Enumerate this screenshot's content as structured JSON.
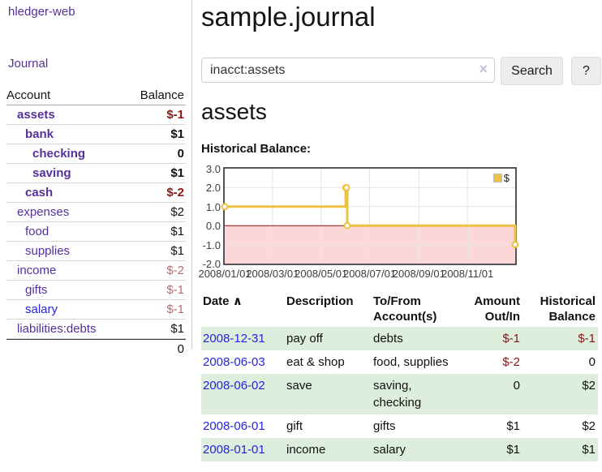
{
  "app": {
    "brand": "hledger-web",
    "nav_journal": "Journal"
  },
  "sidebar": {
    "col_account": "Account",
    "col_balance": "Balance",
    "accounts": [
      {
        "name": "assets",
        "balance": "$-1",
        "level": 1,
        "bold": true,
        "bal_class": "neg-strong",
        "link": "purple"
      },
      {
        "name": "bank",
        "balance": "$1",
        "level": 2,
        "bold": true,
        "bal_class": "",
        "link": "purple"
      },
      {
        "name": "checking",
        "balance": "0",
        "level": 3,
        "bold": true,
        "bal_class": "",
        "link": "purple"
      },
      {
        "name": "saving",
        "balance": "$1",
        "level": 3,
        "bold": true,
        "bal_class": "",
        "link": "purple"
      },
      {
        "name": "cash",
        "balance": "$-2",
        "level": 2,
        "bold": true,
        "bal_class": "neg-strong",
        "link": "purple"
      },
      {
        "name": "expenses",
        "balance": "$2",
        "level": 1,
        "bold": false,
        "bal_class": "",
        "link": "purple"
      },
      {
        "name": "food",
        "balance": "$1",
        "level": 2,
        "bold": false,
        "bal_class": "",
        "link": "purple"
      },
      {
        "name": "supplies",
        "balance": "$1",
        "level": 2,
        "bold": false,
        "bal_class": "",
        "link": "purple"
      },
      {
        "name": "income",
        "balance": "$-2",
        "level": 1,
        "bold": false,
        "bal_class": "neg-soft",
        "link": "purple"
      },
      {
        "name": "gifts",
        "balance": "$-1",
        "level": 2,
        "bold": false,
        "bal_class": "neg-soft",
        "link": "purple"
      },
      {
        "name": "salary",
        "balance": "$-1",
        "level": 2,
        "bold": false,
        "bal_class": "neg-soft",
        "link": "blue"
      },
      {
        "name": "liabilities:debts",
        "balance": "$1",
        "level": 1,
        "bold": false,
        "bal_class": "",
        "link": "purple"
      }
    ],
    "total": "0"
  },
  "main": {
    "title": "sample.journal",
    "search": {
      "value": "inacct:assets",
      "clear_icon": "×",
      "button": "Search",
      "help": "?"
    },
    "account_heading": "assets",
    "chart_label": "Historical Balance:"
  },
  "chart_data": {
    "type": "line",
    "step": true,
    "title": "Historical Balance",
    "xlim": [
      "2008-01-01",
      "2008-12-31"
    ],
    "ylim": [
      -2,
      3
    ],
    "y_ticks": [
      "3.0",
      "2.0",
      "1.0",
      "0.0",
      "-1.0",
      "-2.0"
    ],
    "y_tick_values": [
      3,
      2,
      1,
      0,
      -1,
      -2
    ],
    "x_ticks": [
      "2008/01/01",
      "2008/03/01",
      "2008/05/01",
      "2008/07/01",
      "2008/09/01",
      "2008/11/01"
    ],
    "x_tick_dates": [
      "2008-01-01",
      "2008-03-01",
      "2008-05-01",
      "2008-07-01",
      "2008-09-01",
      "2008-11-01"
    ],
    "series": [
      {
        "name": "$",
        "color": "#edc240",
        "points": [
          [
            "2008-01-01",
            1
          ],
          [
            "2008-06-01",
            2
          ],
          [
            "2008-06-02",
            2
          ],
          [
            "2008-06-03",
            0
          ],
          [
            "2008-12-31",
            -1
          ]
        ]
      }
    ],
    "negative_region_color": "#fbd7d7",
    "zero_line_color": "#991111",
    "legend_position": "top-right",
    "grid": true
  },
  "register": {
    "headers": {
      "date": "Date",
      "sort_indicator": "∧",
      "description": "Description",
      "accounts_line1": "To/From",
      "accounts_line2": "Account(s)",
      "amount_line1": "Amount",
      "amount_line2": "Out/In",
      "balance_line1": "Historical",
      "balance_line2": "Balance"
    },
    "rows": [
      {
        "date": "2008-12-31",
        "description": "pay off",
        "accounts": "debts",
        "amount": "$-1",
        "amount_neg": true,
        "balance": "$-1",
        "balance_neg": true
      },
      {
        "date": "2008-06-03",
        "description": "eat & shop",
        "accounts": "food, supplies",
        "amount": "$-2",
        "amount_neg": true,
        "balance": "0",
        "balance_neg": false
      },
      {
        "date": "2008-06-02",
        "description": "save",
        "accounts": "saving, checking",
        "amount": "0",
        "amount_neg": false,
        "balance": "$2",
        "balance_neg": false
      },
      {
        "date": "2008-06-01",
        "description": "gift",
        "accounts": "gifts",
        "amount": "$1",
        "amount_neg": false,
        "balance": "$2",
        "balance_neg": false
      },
      {
        "date": "2008-01-01",
        "description": "income",
        "accounts": "salary",
        "amount": "$1",
        "amount_neg": false,
        "balance": "$1",
        "balance_neg": false
      }
    ]
  }
}
